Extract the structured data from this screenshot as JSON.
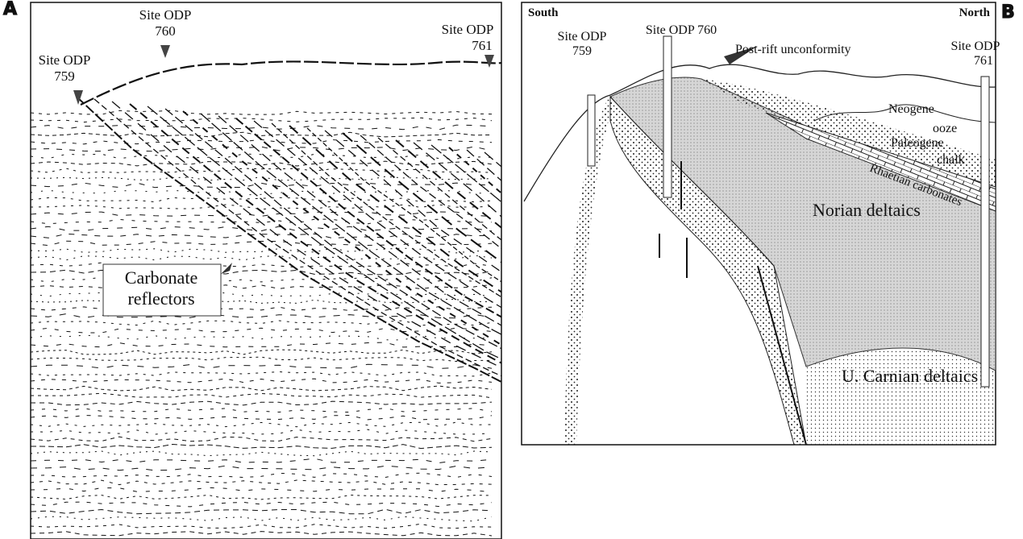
{
  "panel_a": {
    "label": "A",
    "sites": [
      {
        "lines": [
          "Site ODP",
          "759"
        ]
      },
      {
        "lines": [
          "Site ODP",
          "760"
        ]
      },
      {
        "lines": [
          "Site ODP",
          "761"
        ]
      }
    ],
    "annotation": {
      "lines": [
        "Carbonate",
        "reflectors"
      ]
    }
  },
  "panel_b": {
    "label": "B",
    "south": "South",
    "north": "North",
    "sites": [
      {
        "lines": [
          "Site ODP",
          "759"
        ]
      },
      {
        "lines": [
          "Site ODP 760"
        ]
      },
      {
        "lines": [
          "Site ODP",
          "761"
        ]
      }
    ],
    "unconformity": "Post-rift unconformity",
    "neogene": [
      "Neogene",
      "ooze"
    ],
    "paleogene": [
      "Paleogene",
      "chalk"
    ],
    "rhaetian": "Rhaetian carbonates",
    "norian": "Norian deltaics",
    "carnian": "U. Carnian deltaics"
  }
}
